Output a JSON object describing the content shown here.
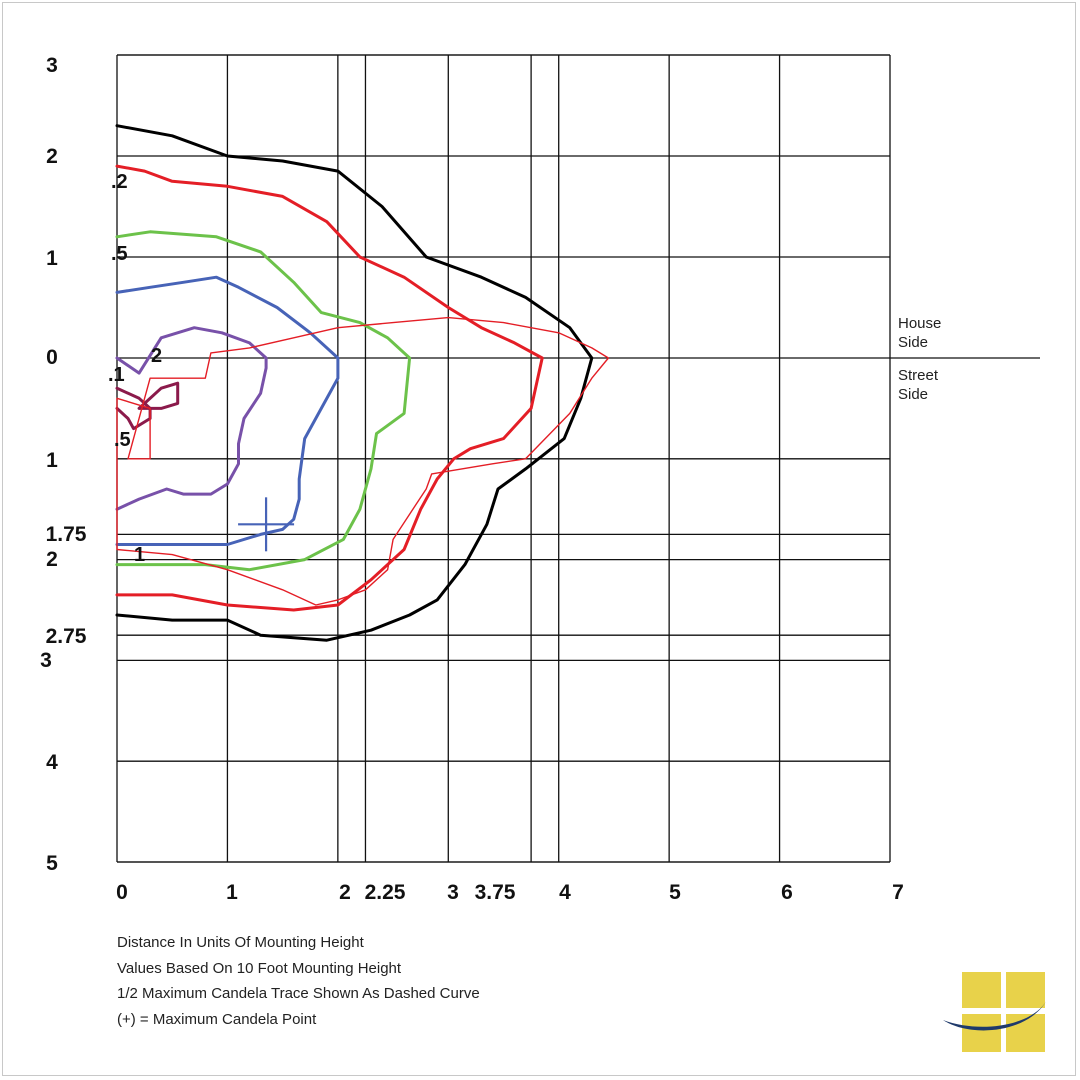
{
  "chart_data": {
    "type": "isofootcandle contour",
    "x_ticks": [
      "0",
      "1",
      "2",
      "2.25",
      "3",
      "3.75",
      "4",
      "5",
      "6",
      "7"
    ],
    "y_ticks_top": [
      "3",
      "2",
      "1",
      "0"
    ],
    "y_ticks_bottom": [
      "1",
      "1.75",
      "2",
      "2.75",
      "3",
      "4",
      "5"
    ],
    "xlim": [
      0,
      7
    ],
    "ylim": [
      -5,
      3
    ],
    "grid": true,
    "side_labels": {
      "house": [
        "House",
        "Side"
      ],
      "street": [
        "Street",
        "Side"
      ]
    },
    "contour_labels": [
      ".2",
      ".5",
      "2",
      ".1",
      ".5",
      "1"
    ],
    "contours": [
      {
        "color": "#000000",
        "points": [
          [
            0,
            2.3
          ],
          [
            0.5,
            2.2
          ],
          [
            1,
            2.0
          ],
          [
            1.5,
            1.95
          ],
          [
            2,
            1.85
          ],
          [
            2.4,
            1.5
          ],
          [
            2.8,
            1.0
          ],
          [
            3.3,
            0.8
          ],
          [
            3.7,
            0.6
          ],
          [
            4.1,
            0.3
          ],
          [
            4.3,
            0
          ],
          [
            4.2,
            -0.4
          ],
          [
            4.05,
            -0.8
          ],
          [
            3.7,
            -1.1
          ],
          [
            3.45,
            -1.3
          ],
          [
            3.35,
            -1.65
          ],
          [
            3.15,
            -2.05
          ],
          [
            2.9,
            -2.4
          ],
          [
            2.65,
            -2.55
          ],
          [
            2.3,
            -2.7
          ],
          [
            1.9,
            -2.8
          ],
          [
            1.3,
            -2.75
          ],
          [
            1,
            -2.6
          ],
          [
            0.5,
            -2.6
          ],
          [
            0,
            -2.55
          ]
        ]
      },
      {
        "color": "#e41e26",
        "points": [
          [
            0,
            1.9
          ],
          [
            0.25,
            1.85
          ],
          [
            0.5,
            1.75
          ],
          [
            1,
            1.7
          ],
          [
            1.5,
            1.6
          ],
          [
            1.9,
            1.35
          ],
          [
            2.2,
            1.0
          ],
          [
            2.6,
            0.8
          ],
          [
            3,
            0.5
          ],
          [
            3.3,
            0.3
          ],
          [
            3.6,
            0.15
          ],
          [
            3.85,
            0
          ],
          [
            3.75,
            -0.5
          ],
          [
            3.5,
            -0.8
          ],
          [
            3.2,
            -0.9
          ],
          [
            3.05,
            -1.0
          ],
          [
            2.9,
            -1.2
          ],
          [
            2.75,
            -1.5
          ],
          [
            2.6,
            -1.9
          ],
          [
            2.3,
            -2.2
          ],
          [
            2,
            -2.45
          ],
          [
            1.6,
            -2.5
          ],
          [
            1,
            -2.45
          ],
          [
            0.5,
            -2.35
          ],
          [
            0,
            -2.35
          ]
        ]
      },
      {
        "color": "#6cc24a",
        "points": [
          [
            0,
            1.2
          ],
          [
            0.3,
            1.25
          ],
          [
            0.9,
            1.2
          ],
          [
            1.3,
            1.05
          ],
          [
            1.6,
            0.75
          ],
          [
            1.85,
            0.45
          ],
          [
            2.2,
            0.35
          ],
          [
            2.45,
            0.2
          ],
          [
            2.65,
            0
          ],
          [
            2.6,
            -0.55
          ],
          [
            2.35,
            -0.75
          ],
          [
            2.3,
            -1.1
          ],
          [
            2.2,
            -1.5
          ],
          [
            2.05,
            -1.8
          ],
          [
            1.7,
            -2.0
          ],
          [
            1.2,
            -2.1
          ],
          [
            0.8,
            -2.05
          ],
          [
            0.3,
            -2.05
          ],
          [
            0,
            -2.05
          ]
        ]
      },
      {
        "color": "#4763b7",
        "points": [
          [
            0,
            0.65
          ],
          [
            0.3,
            0.7
          ],
          [
            0.6,
            0.75
          ],
          [
            0.9,
            0.8
          ],
          [
            1.1,
            0.7
          ],
          [
            1.45,
            0.5
          ],
          [
            1.75,
            0.25
          ],
          [
            1.95,
            0.05
          ],
          [
            2,
            0
          ],
          [
            2,
            -0.2
          ],
          [
            1.85,
            -0.5
          ],
          [
            1.7,
            -0.8
          ],
          [
            1.65,
            -1.2
          ],
          [
            1.65,
            -1.4
          ],
          [
            1.6,
            -1.6
          ],
          [
            1.5,
            -1.7
          ],
          [
            1.3,
            -1.75
          ],
          [
            1,
            -1.85
          ],
          [
            0.7,
            -1.85
          ],
          [
            0.3,
            -1.85
          ],
          [
            0,
            -1.85
          ]
        ]
      },
      {
        "color": "#7851a9",
        "points": [
          [
            0,
            0
          ],
          [
            0.2,
            -0.15
          ],
          [
            0.4,
            0.2
          ],
          [
            0.7,
            0.3
          ],
          [
            0.95,
            0.25
          ],
          [
            1.2,
            0.15
          ],
          [
            1.35,
            0
          ],
          [
            1.35,
            -0.1
          ],
          [
            1.3,
            -0.35
          ],
          [
            1.15,
            -0.6
          ],
          [
            1.1,
            -0.85
          ],
          [
            1.1,
            -1.05
          ],
          [
            1.0,
            -1.25
          ],
          [
            0.85,
            -1.35
          ],
          [
            0.6,
            -1.35
          ],
          [
            0.45,
            -1.3
          ],
          [
            0.2,
            -1.4
          ],
          [
            0,
            -1.5
          ]
        ]
      },
      {
        "color": "#8b1a4b",
        "points": [
          [
            0,
            -0.3
          ],
          [
            0.2,
            -0.4
          ],
          [
            0.3,
            -0.5
          ],
          [
            0.3,
            -0.6
          ],
          [
            0.15,
            -0.7
          ],
          [
            0.1,
            -0.6
          ],
          [
            0,
            -0.5
          ]
        ]
      },
      {
        "color": "#8b1a4b",
        "points": [
          [
            0.2,
            -0.5
          ],
          [
            0.4,
            -0.3
          ],
          [
            0.55,
            -0.25
          ],
          [
            0.55,
            -0.45
          ],
          [
            0.4,
            -0.5
          ],
          [
            0.2,
            -0.5
          ]
        ]
      }
    ],
    "half_max_trace": {
      "color": "#e41e26",
      "points": [
        [
          3.7,
          -1.0
        ],
        [
          3.4,
          -1.05
        ],
        [
          2.85,
          -1.15
        ],
        [
          2.8,
          -1.3
        ],
        [
          2.65,
          -1.55
        ],
        [
          2.5,
          -1.8
        ],
        [
          2.45,
          -2.1
        ],
        [
          2.25,
          -2.3
        ],
        [
          2.0,
          -2.4
        ],
        [
          1.8,
          -2.45
        ],
        [
          1.5,
          -2.3
        ],
        [
          1.0,
          -2.1
        ],
        [
          0.5,
          -1.95
        ],
        [
          0,
          -1.9
        ],
        [
          0,
          -0.4
        ],
        [
          0.3,
          -0.5
        ],
        [
          0.3,
          -1.0
        ],
        [
          0.1,
          -1.0
        ],
        [
          0.3,
          -0.2
        ],
        [
          0.8,
          -0.2
        ],
        [
          0.85,
          0.05
        ],
        [
          1.2,
          0.1
        ],
        [
          1.6,
          0.2
        ],
        [
          2.0,
          0.3
        ],
        [
          2.5,
          0.35
        ],
        [
          3.0,
          0.4
        ],
        [
          3.5,
          0.35
        ],
        [
          4.0,
          0.25
        ],
        [
          4.3,
          0.1
        ],
        [
          4.45,
          0
        ],
        [
          4.3,
          -0.2
        ],
        [
          4.1,
          -0.55
        ],
        [
          3.7,
          -1.0
        ]
      ]
    },
    "max_candela_point": [
      1.35,
      -1.65
    ]
  },
  "notes": [
    "Distance In Units Of Mounting Height",
    "Values Based On 10 Foot Mounting Height",
    "1/2 Maximum Candela Trace Shown As Dashed Curve",
    "(+) = Maximum Candela Point"
  ],
  "colors": {
    "logo_yellow": "#e8d24a",
    "logo_navy": "#1f3a6b"
  }
}
